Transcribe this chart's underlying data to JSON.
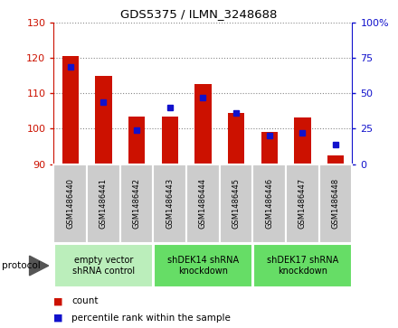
{
  "title": "GDS5375 / ILMN_3248688",
  "samples": [
    "GSM1486440",
    "GSM1486441",
    "GSM1486442",
    "GSM1486443",
    "GSM1486444",
    "GSM1486445",
    "GSM1486446",
    "GSM1486447",
    "GSM1486448"
  ],
  "count_values": [
    120.7,
    115.0,
    103.5,
    103.5,
    112.7,
    104.5,
    99.0,
    103.2,
    92.5
  ],
  "percentile_values": [
    69,
    44,
    24,
    40,
    47,
    36,
    20,
    22,
    14
  ],
  "ylim_left": [
    90,
    130
  ],
  "ylim_right": [
    0,
    100
  ],
  "yticks_left": [
    90,
    100,
    110,
    120,
    130
  ],
  "yticks_right": [
    0,
    25,
    50,
    75,
    100
  ],
  "bar_color": "#CC1100",
  "blue_color": "#1111CC",
  "baseline": 90,
  "groups": [
    {
      "label": "empty vector\nshRNA control",
      "start": 0,
      "end": 3,
      "color": "#BBEEBB"
    },
    {
      "label": "shDEK14 shRNA\nknockdown",
      "start": 3,
      "end": 6,
      "color": "#66DD66"
    },
    {
      "label": "shDEK17 shRNA\nknockdown",
      "start": 6,
      "end": 9,
      "color": "#66DD66"
    }
  ],
  "legend_count_label": "count",
  "legend_pct_label": "percentile rank within the sample",
  "bar_width": 0.5,
  "sample_bg_color": "#CCCCCC",
  "sample_border_color": "#FFFFFF"
}
